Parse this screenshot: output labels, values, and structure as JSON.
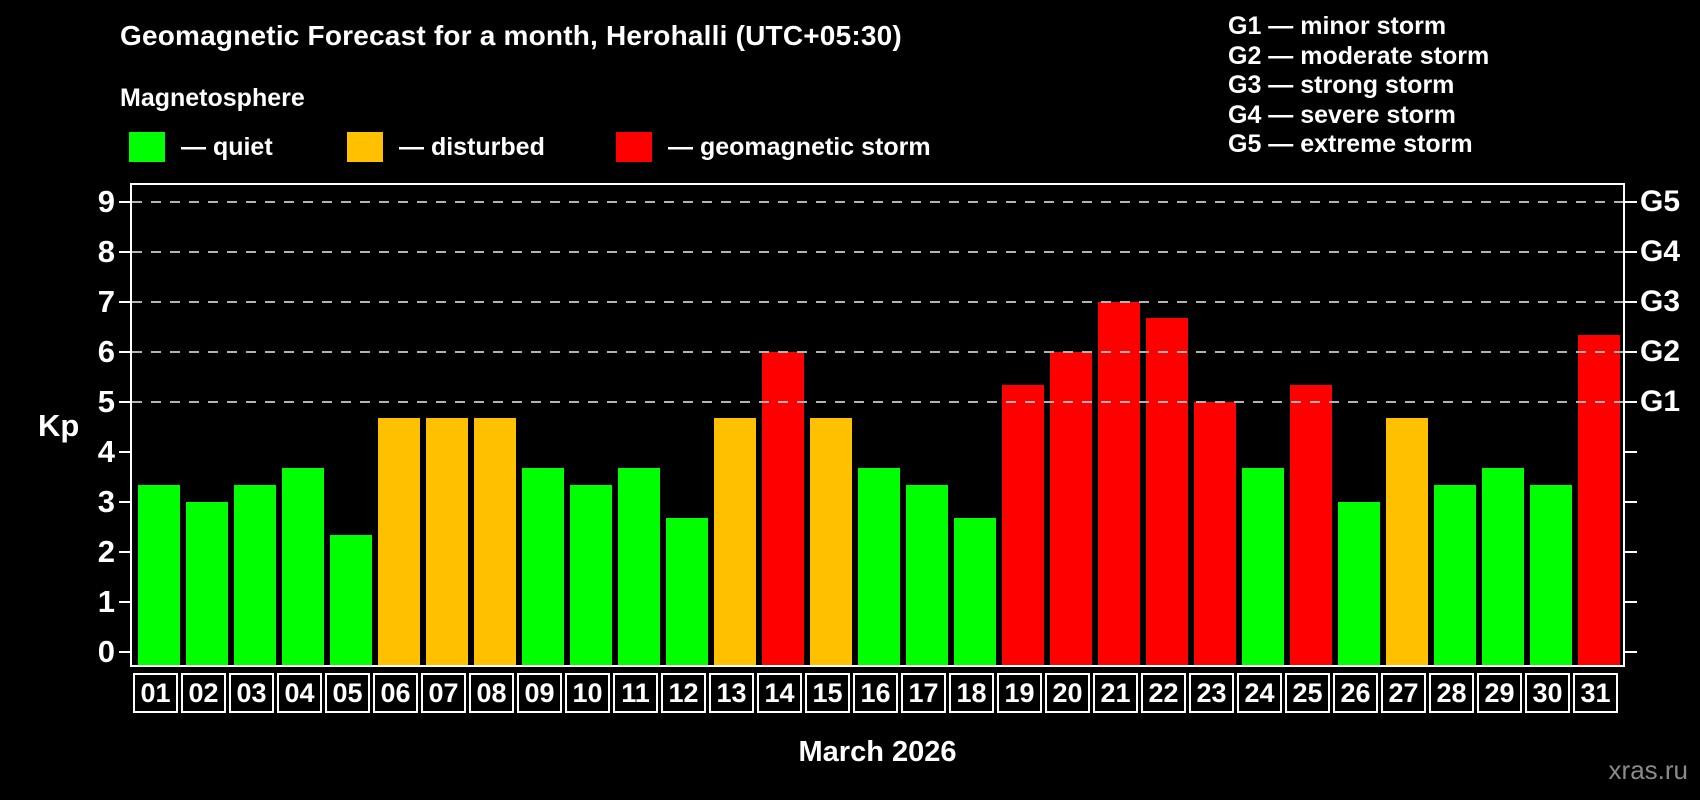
{
  "title": "Geomagnetic Forecast for a month, Herohalli (UTC+05:30)",
  "subtitle": "Magnetosphere",
  "ylabel": "Kp",
  "xlabel": "March 2026",
  "watermark": "xras.ru",
  "legend": {
    "items": [
      {
        "name": "quiet",
        "label": "— quiet",
        "color": "#00ff00"
      },
      {
        "name": "disturbed",
        "label": "— disturbed",
        "color": "#ffc000"
      },
      {
        "name": "storm",
        "label": "— geomagnetic storm",
        "color": "#ff0000"
      }
    ]
  },
  "storm_scale": [
    "G1 — minor storm",
    "G2 — moderate storm",
    "G3 — strong storm",
    "G4 — severe storm",
    "G5 — extreme storm"
  ],
  "chart_data": {
    "type": "bar",
    "title": "Geomagnetic Forecast for a month, Herohalli (UTC+05:30)",
    "subtitle": "Magnetosphere",
    "xlabel": "March 2026",
    "ylabel": "Kp",
    "ylim": [
      0,
      9
    ],
    "yticks": [
      0,
      1,
      2,
      3,
      4,
      5,
      6,
      7,
      8,
      9
    ],
    "gridlines_at": [
      5,
      6,
      7,
      8,
      9
    ],
    "grid": "dashed horizontal at storm levels only",
    "legend_position": "top-left",
    "categories": [
      "01",
      "02",
      "03",
      "04",
      "05",
      "06",
      "07",
      "08",
      "09",
      "10",
      "11",
      "12",
      "13",
      "14",
      "15",
      "16",
      "17",
      "18",
      "19",
      "20",
      "21",
      "22",
      "23",
      "24",
      "25",
      "26",
      "27",
      "28",
      "29",
      "30",
      "31"
    ],
    "values": [
      3.33,
      3.0,
      3.33,
      3.67,
      2.33,
      4.67,
      4.67,
      4.67,
      3.67,
      3.33,
      3.67,
      2.67,
      4.67,
      6.0,
      4.67,
      3.67,
      3.33,
      2.67,
      5.33,
      6.0,
      7.0,
      6.67,
      5.0,
      3.67,
      5.33,
      3.0,
      4.67,
      3.33,
      3.67,
      3.33,
      6.33
    ],
    "states": [
      "quiet",
      "quiet",
      "quiet",
      "quiet",
      "quiet",
      "disturbed",
      "disturbed",
      "disturbed",
      "quiet",
      "quiet",
      "quiet",
      "quiet",
      "disturbed",
      "storm",
      "disturbed",
      "quiet",
      "quiet",
      "quiet",
      "storm",
      "storm",
      "storm",
      "storm",
      "storm",
      "quiet",
      "storm",
      "quiet",
      "disturbed",
      "quiet",
      "quiet",
      "quiet",
      "storm"
    ],
    "colors": {
      "quiet": "#00ff00",
      "disturbed": "#ffc000",
      "storm": "#ff0000"
    },
    "right_axis_labels": [
      {
        "kp": 5,
        "label": "G1"
      },
      {
        "kp": 6,
        "label": "G2"
      },
      {
        "kp": 7,
        "label": "G3"
      },
      {
        "kp": 8,
        "label": "G4"
      },
      {
        "kp": 9,
        "label": "G5"
      }
    ],
    "background": "#000000",
    "grid_color": "#b3b3b3"
  }
}
